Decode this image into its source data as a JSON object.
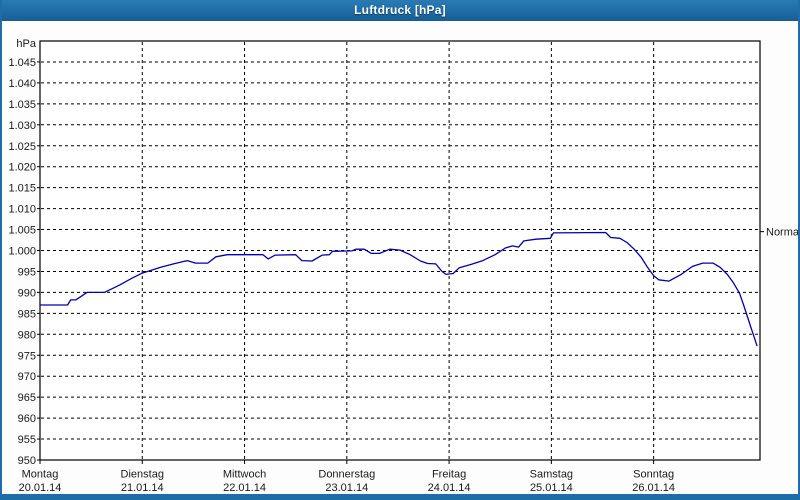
{
  "window": {
    "title": "Luftdruck [hPa]"
  },
  "colors": {
    "frame_blue": "#1e6da6",
    "line_blue": "#0000b4",
    "grid_black": "#000000",
    "plot_background": "#ffffff"
  },
  "chart_data": {
    "type": "line",
    "title": "Luftdruck [hPa]",
    "unit_label": "hPa",
    "ylim": [
      950,
      1050
    ],
    "xlim_days": [
      0,
      7.04
    ],
    "grid": "dashed",
    "legend_position": "none",
    "y_ticks": [
      {
        "value": 1045,
        "label": "1.045"
      },
      {
        "value": 1040,
        "label": "1.040"
      },
      {
        "value": 1035,
        "label": "1.035"
      },
      {
        "value": 1030,
        "label": "1.030"
      },
      {
        "value": 1025,
        "label": "1.025"
      },
      {
        "value": 1020,
        "label": "1.020"
      },
      {
        "value": 1015,
        "label": "1.015"
      },
      {
        "value": 1010,
        "label": "1.010"
      },
      {
        "value": 1005,
        "label": "1.005"
      },
      {
        "value": 1000,
        "label": "1.000"
      },
      {
        "value": 995,
        "label": "995"
      },
      {
        "value": 990,
        "label": "990"
      },
      {
        "value": 985,
        "label": "985"
      },
      {
        "value": 980,
        "label": "980"
      },
      {
        "value": 975,
        "label": "975"
      },
      {
        "value": 970,
        "label": "970"
      },
      {
        "value": 965,
        "label": "965"
      },
      {
        "value": 960,
        "label": "960"
      },
      {
        "value": 955,
        "label": "955"
      },
      {
        "value": 950,
        "label": "950"
      }
    ],
    "x_ticks": [
      {
        "day": 0,
        "weekday": "Montag",
        "date": "20.01.14"
      },
      {
        "day": 1,
        "weekday": "Dienstag",
        "date": "21.01.14"
      },
      {
        "day": 2,
        "weekday": "Mittwoch",
        "date": "22.01.14"
      },
      {
        "day": 3,
        "weekday": "Donnerstag",
        "date": "23.01.14"
      },
      {
        "day": 4,
        "weekday": "Freitag",
        "date": "24.01.14"
      },
      {
        "day": 5,
        "weekday": "Samstag",
        "date": "25.01.14"
      },
      {
        "day": 6,
        "weekday": "Sonntag",
        "date": "26.01.14"
      }
    ],
    "normal_marker": {
      "label": "Normal",
      "value": 1004.5
    },
    "series": [
      {
        "name": "Luftdruck",
        "color": "#0000b4",
        "points": [
          [
            0.0,
            987.0
          ],
          [
            0.27,
            987.0
          ],
          [
            0.3,
            988.2
          ],
          [
            0.35,
            988.2
          ],
          [
            0.46,
            990.0
          ],
          [
            0.63,
            990.0
          ],
          [
            0.78,
            991.8
          ],
          [
            0.9,
            993.4
          ],
          [
            1.0,
            994.6
          ],
          [
            1.18,
            996.0
          ],
          [
            1.32,
            996.9
          ],
          [
            1.44,
            997.6
          ],
          [
            1.52,
            997.0
          ],
          [
            1.64,
            997.0
          ],
          [
            1.72,
            998.5
          ],
          [
            1.83,
            999.0
          ],
          [
            2.18,
            999.0
          ],
          [
            2.23,
            998.0
          ],
          [
            2.3,
            998.9
          ],
          [
            2.5,
            999.0
          ],
          [
            2.56,
            997.6
          ],
          [
            2.66,
            997.5
          ],
          [
            2.76,
            998.9
          ],
          [
            2.83,
            999.0
          ],
          [
            2.86,
            999.8
          ],
          [
            3.05,
            999.9
          ],
          [
            3.09,
            1000.3
          ],
          [
            3.17,
            1000.3
          ],
          [
            3.24,
            999.3
          ],
          [
            3.32,
            999.3
          ],
          [
            3.42,
            1000.3
          ],
          [
            3.52,
            1000.1
          ],
          [
            3.62,
            999.0
          ],
          [
            3.72,
            997.5
          ],
          [
            3.79,
            996.9
          ],
          [
            3.87,
            996.8
          ],
          [
            3.93,
            995.0
          ],
          [
            3.97,
            994.3
          ],
          [
            4.04,
            994.5
          ],
          [
            4.1,
            995.9
          ],
          [
            4.22,
            996.7
          ],
          [
            4.33,
            997.6
          ],
          [
            4.45,
            999.0
          ],
          [
            4.55,
            1000.6
          ],
          [
            4.62,
            1001.1
          ],
          [
            4.68,
            1000.8
          ],
          [
            4.73,
            1002.3
          ],
          [
            4.85,
            1002.7
          ],
          [
            4.99,
            1002.9
          ],
          [
            5.02,
            1004.2
          ],
          [
            5.53,
            1004.3
          ],
          [
            5.58,
            1003.1
          ],
          [
            5.67,
            1002.9
          ],
          [
            5.74,
            1001.9
          ],
          [
            5.81,
            1000.3
          ],
          [
            5.88,
            998.3
          ],
          [
            5.94,
            996.0
          ],
          [
            6.0,
            994.0
          ],
          [
            6.05,
            993.0
          ],
          [
            6.15,
            992.7
          ],
          [
            6.27,
            994.3
          ],
          [
            6.38,
            996.2
          ],
          [
            6.48,
            997.0
          ],
          [
            6.58,
            997.0
          ],
          [
            6.65,
            996.0
          ],
          [
            6.72,
            994.3
          ],
          [
            6.78,
            992.3
          ],
          [
            6.84,
            989.8
          ],
          [
            6.88,
            987.0
          ],
          [
            6.92,
            984.0
          ],
          [
            6.96,
            981.0
          ],
          [
            6.99,
            978.8
          ],
          [
            7.01,
            977.3
          ]
        ]
      }
    ]
  }
}
